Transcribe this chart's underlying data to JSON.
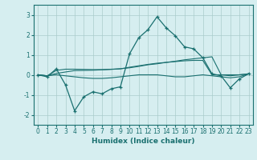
{
  "xlabel": "Humidex (Indice chaleur)",
  "background_color": "#d6eef0",
  "grid_color": "#aacccc",
  "line_color": "#1a7070",
  "xlim": [
    -0.5,
    23.5
  ],
  "ylim": [
    -2.5,
    3.5
  ],
  "yticks": [
    -2,
    -1,
    0,
    1,
    2,
    3
  ],
  "xticks": [
    0,
    1,
    2,
    3,
    4,
    5,
    6,
    7,
    8,
    9,
    10,
    11,
    12,
    13,
    14,
    15,
    16,
    17,
    18,
    19,
    20,
    21,
    22,
    23
  ],
  "series": [
    {
      "x": [
        0,
        1,
        2,
        3,
        4,
        5,
        6,
        7,
        8,
        9,
        10,
        11,
        12,
        13,
        14,
        15,
        16,
        17,
        18,
        19,
        20,
        21,
        22,
        23
      ],
      "y": [
        0.0,
        -0.1,
        0.3,
        -0.5,
        -1.8,
        -1.1,
        -0.85,
        -0.95,
        -0.7,
        -0.6,
        1.05,
        1.85,
        2.25,
        2.9,
        2.35,
        1.95,
        1.4,
        1.3,
        0.85,
        0.05,
        -0.05,
        -0.65,
        -0.2,
        0.05
      ],
      "marker": true
    },
    {
      "x": [
        0,
        1,
        2,
        3,
        4,
        5,
        6,
        7,
        8,
        9,
        10,
        11,
        12,
        13,
        14,
        15,
        16,
        17,
        18,
        19,
        20,
        21,
        22,
        23
      ],
      "y": [
        0.0,
        -0.05,
        0.07,
        0.14,
        0.21,
        0.22,
        0.23,
        0.25,
        0.27,
        0.3,
        0.35,
        0.42,
        0.5,
        0.55,
        0.62,
        0.68,
        0.75,
        0.8,
        0.85,
        0.9,
        0.0,
        0.0,
        0.0,
        0.05
      ],
      "marker": false
    },
    {
      "x": [
        0,
        1,
        2,
        3,
        4,
        5,
        6,
        7,
        8,
        9,
        10,
        11,
        12,
        13,
        14,
        15,
        16,
        17,
        18,
        19,
        20,
        21,
        22,
        23
      ],
      "y": [
        0.0,
        -0.05,
        0.22,
        0.28,
        0.28,
        0.27,
        0.26,
        0.26,
        0.28,
        0.3,
        0.38,
        0.45,
        0.52,
        0.58,
        0.62,
        0.66,
        0.7,
        0.72,
        0.72,
        0.0,
        0.0,
        -0.05,
        0.0,
        0.05
      ],
      "marker": false
    },
    {
      "x": [
        0,
        1,
        2,
        3,
        4,
        5,
        6,
        7,
        8,
        9,
        10,
        11,
        12,
        13,
        14,
        15,
        16,
        17,
        18,
        19,
        20,
        21,
        22,
        23
      ],
      "y": [
        0.0,
        -0.05,
        0.0,
        -0.05,
        -0.1,
        -0.15,
        -0.18,
        -0.18,
        -0.15,
        -0.1,
        -0.05,
        0.0,
        0.0,
        0.0,
        -0.05,
        -0.1,
        -0.1,
        -0.05,
        0.0,
        -0.05,
        -0.1,
        -0.15,
        -0.1,
        0.05
      ],
      "marker": false
    }
  ]
}
